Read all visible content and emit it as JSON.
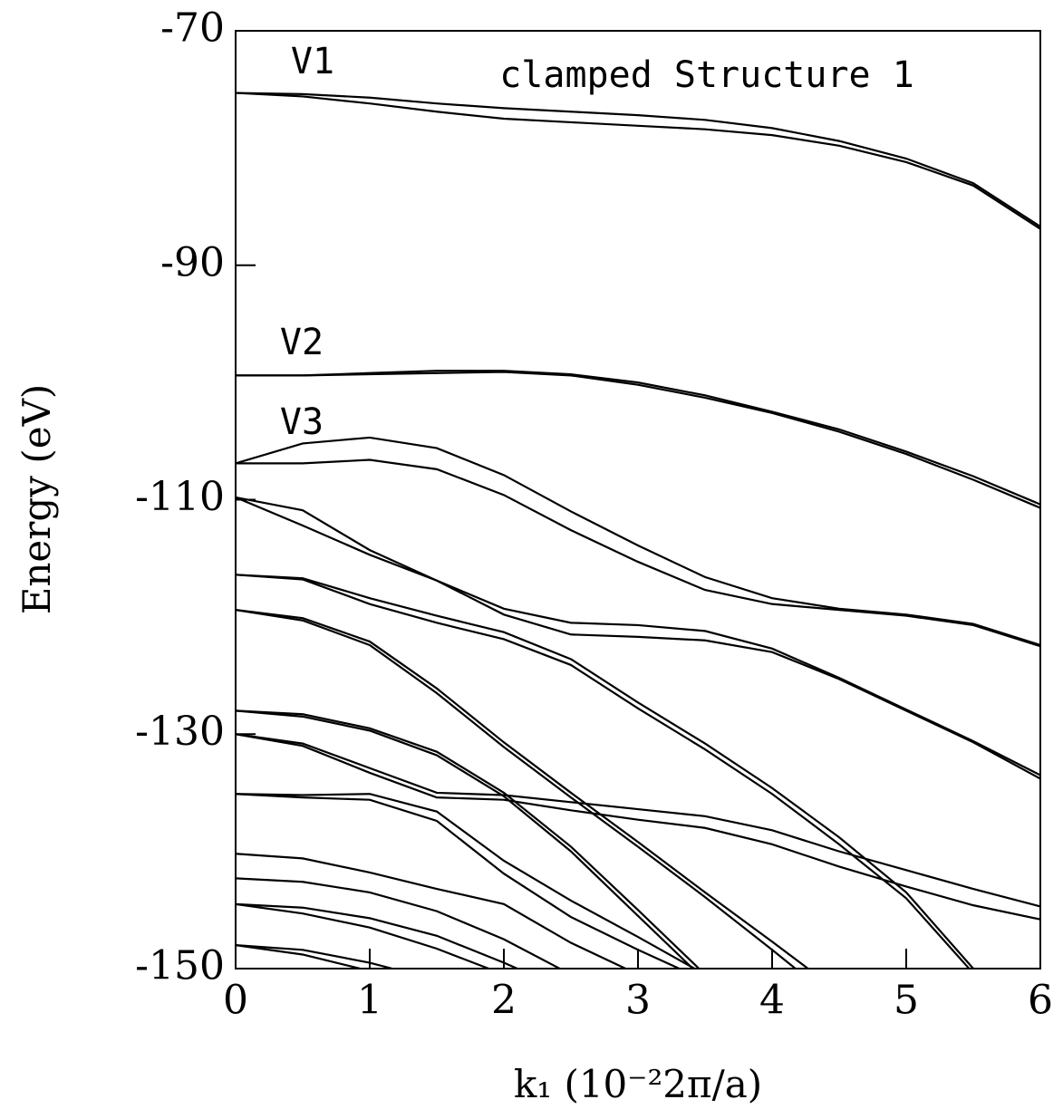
{
  "chart_data": {
    "type": "line",
    "xlabel": "k₁ (10⁻²2π/a)",
    "ylabel": "Energy (eV)",
    "annotations": [
      "V1",
      "V2",
      "V3",
      "clamped Structure 1"
    ],
    "x": [
      0,
      0.5,
      1,
      1.5,
      2,
      2.5,
      3,
      3.5,
      4,
      4.5,
      5,
      5.5,
      6
    ],
    "xlim": [
      0,
      6
    ],
    "xticks": [
      0,
      1,
      2,
      3,
      4,
      5,
      6
    ],
    "ylim": [
      -150,
      -70
    ],
    "yticks": [
      -150,
      -130,
      -110,
      -90,
      -70
    ],
    "color": "#000000",
    "series": [
      {
        "values": [
          -75.3,
          -75.4,
          -75.7,
          -76.2,
          -76.6,
          -76.9,
          -77.2,
          -77.6,
          -78.3,
          -79.4,
          -80.9,
          -83.0,
          -86.7
        ]
      },
      {
        "values": [
          -75.3,
          -75.6,
          -76.2,
          -76.9,
          -77.5,
          -77.8,
          -78.1,
          -78.4,
          -78.9,
          -79.8,
          -81.2,
          -83.2,
          -86.9
        ]
      },
      {
        "values": [
          -99.4,
          -99.4,
          -99.2,
          -99.0,
          -99.0,
          -99.3,
          -100.0,
          -101.1,
          -102.5,
          -104.0,
          -105.9,
          -108.0,
          -110.4
        ]
      },
      {
        "values": [
          -99.4,
          -99.4,
          -99.3,
          -99.2,
          -99.1,
          -99.4,
          -100.2,
          -101.3,
          -102.6,
          -104.2,
          -106.1,
          -108.3,
          -110.7
        ]
      },
      {
        "values": [
          -106.9,
          -105.2,
          -104.7,
          -105.6,
          -107.9,
          -111.0,
          -113.9,
          -116.6,
          -118.4,
          -119.3,
          -119.8,
          -120.6,
          -122.4
        ]
      },
      {
        "values": [
          -106.9,
          -106.9,
          -106.6,
          -107.4,
          -109.6,
          -112.6,
          -115.3,
          -117.7,
          -118.9,
          -119.4,
          -119.9,
          -120.7,
          -122.5
        ]
      },
      {
        "values": [
          -109.8,
          -110.9,
          -114.3,
          -116.9,
          -119.3,
          -120.5,
          -120.7,
          -121.2,
          -122.7,
          -125.2,
          -127.9,
          -130.6,
          -133.5
        ]
      },
      {
        "values": [
          -109.8,
          -112.2,
          -114.7,
          -116.9,
          -119.8,
          -121.5,
          -121.7,
          -122.0,
          -123.0,
          -125.3,
          -128.0,
          -130.7,
          -133.8
        ]
      },
      {
        "values": [
          -116.4,
          -116.7,
          -118.4,
          -119.9,
          -121.3,
          -123.6,
          -127.3,
          -130.8,
          -134.6,
          -138.8,
          -143.5,
          -150.0,
          null
        ]
      },
      {
        "values": [
          -116.4,
          -116.8,
          -118.9,
          -120.5,
          -121.9,
          -124.1,
          -127.8,
          -131.3,
          -135.1,
          -139.4,
          -144.0,
          -150.4,
          null
        ]
      },
      {
        "values": [
          -119.4,
          -120.1,
          -122.1,
          -126.1,
          -130.7,
          -135.0,
          -139.2,
          -143.5,
          -147.7,
          -152.0,
          null,
          null,
          null
        ]
      },
      {
        "values": [
          -119.4,
          -120.3,
          -122.4,
          -126.5,
          -131.1,
          -135.4,
          -139.6,
          -143.9,
          -148.4,
          -153.0,
          null,
          null,
          null
        ]
      },
      {
        "values": [
          -128.0,
          -128.3,
          -129.5,
          -131.5,
          -135.0,
          -139.6,
          -145.0,
          -150.5,
          null,
          null,
          null,
          null,
          null
        ]
      },
      {
        "values": [
          -128.0,
          -128.5,
          -129.7,
          -131.8,
          -135.3,
          -140.0,
          -145.5,
          -151.0,
          null,
          null,
          null,
          null,
          null
        ]
      },
      {
        "values": [
          -130.0,
          -130.8,
          -132.9,
          -135.0,
          -135.2,
          -135.8,
          -136.4,
          -137.0,
          -138.2,
          -140.0,
          -141.6,
          -143.2,
          -144.7
        ]
      },
      {
        "values": [
          -130.0,
          -131.0,
          -133.3,
          -135.4,
          -135.6,
          -136.5,
          -137.3,
          -138.0,
          -139.4,
          -141.3,
          -143.0,
          -144.6,
          -145.8
        ]
      },
      {
        "values": [
          -135.1,
          -135.2,
          -135.1,
          -136.6,
          -140.8,
          -144.2,
          -147.3,
          -150.5,
          null,
          null,
          null,
          null,
          null
        ]
      },
      {
        "values": [
          -135.1,
          -135.4,
          -135.6,
          -137.4,
          -141.9,
          -145.6,
          -148.4,
          -151.0,
          null,
          null,
          null,
          null,
          null
        ]
      },
      {
        "values": [
          -140.2,
          -140.6,
          -141.8,
          -143.2,
          -144.5,
          -147.8,
          -150.5,
          null,
          null,
          null,
          null,
          null,
          null
        ]
      },
      {
        "values": [
          -142.3,
          -142.6,
          -143.5,
          -145.1,
          -147.5,
          -150.5,
          null,
          null,
          null,
          null,
          null,
          null,
          null
        ]
      },
      {
        "values": [
          -144.5,
          -144.8,
          -145.7,
          -147.2,
          -149.5,
          -152.0,
          null,
          null,
          null,
          null,
          null,
          null,
          null
        ]
      },
      {
        "values": [
          -144.5,
          -145.3,
          -146.5,
          -148.3,
          -150.5,
          null,
          null,
          null,
          null,
          null,
          null,
          null,
          null
        ]
      },
      {
        "values": [
          -148.0,
          -148.4,
          -149.5,
          -151.0,
          null,
          null,
          null,
          null,
          null,
          null,
          null,
          null,
          null
        ]
      },
      {
        "values": [
          -148.0,
          -148.8,
          -150.2,
          null,
          null,
          null,
          null,
          null,
          null,
          null,
          null,
          null,
          null
        ]
      }
    ]
  }
}
